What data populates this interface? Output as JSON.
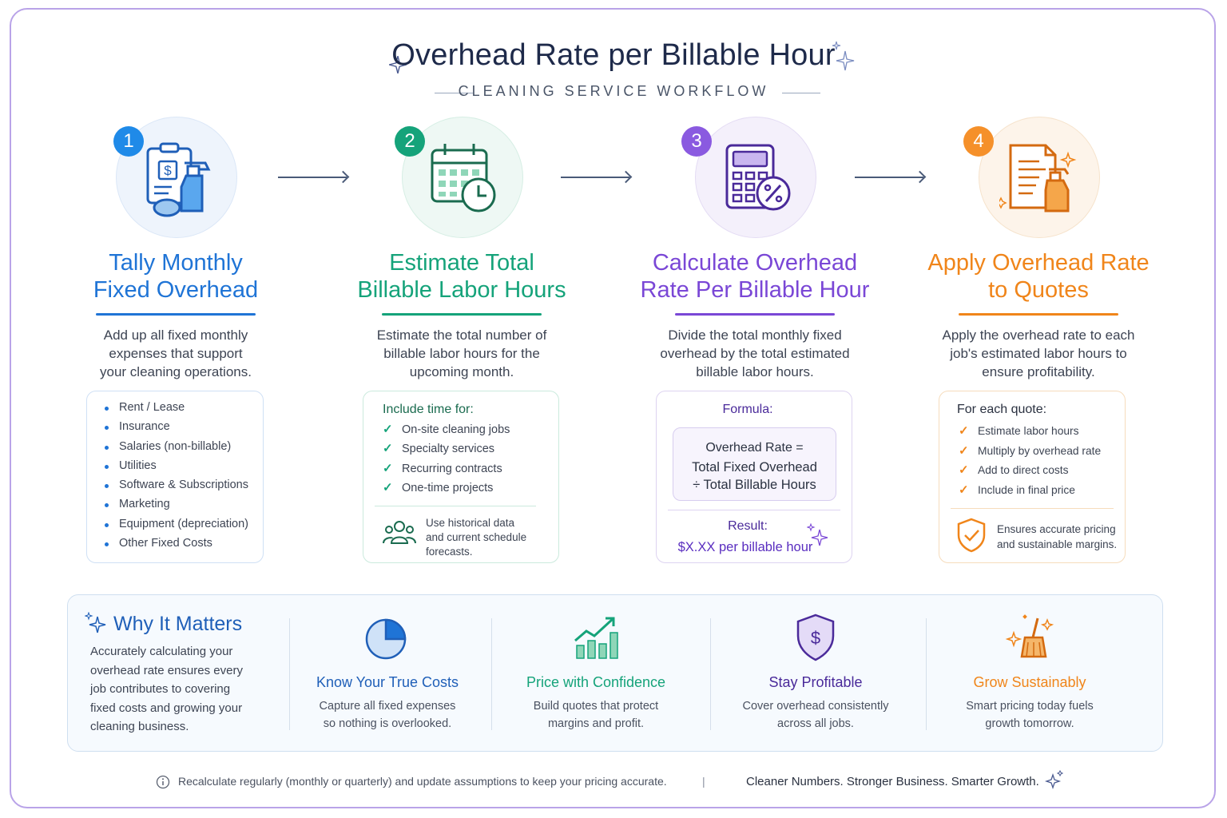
{
  "header": {
    "title": "Overhead Rate per Billable Hour",
    "subtitle": "CLEANING SERVICE WORKFLOW"
  },
  "colors": {
    "step1": "#1f74d6",
    "step2": "#15a37a",
    "step3": "#7a47d6",
    "step4": "#f0851a"
  },
  "steps": [
    {
      "number": "1",
      "icon": "clipboard-spray-icon",
      "title_line1": "Tally Monthly",
      "title_line2": "Fixed Overhead",
      "desc": [
        "Add up all fixed monthly",
        "expenses that support",
        "your cleaning operations."
      ],
      "items": [
        "Rent / Lease",
        "Insurance",
        "Salaries (non-billable)",
        "Utilities",
        "Software & Subscriptions",
        "Marketing",
        "Equipment (depreciation)",
        "Other Fixed Costs"
      ]
    },
    {
      "number": "2",
      "icon": "calendar-clock-icon",
      "title_line1": "Estimate Total",
      "title_line2": "Billable Labor Hours",
      "desc": [
        "Estimate the total number of",
        "billable labor hours for the",
        "upcoming month."
      ],
      "card_heading": "Include time for:",
      "items": [
        "On-site cleaning jobs",
        "Specialty services",
        "Recurring contracts",
        "One-time projects"
      ],
      "note": [
        "Use historical data",
        "and current schedule",
        "forecasts."
      ]
    },
    {
      "number": "3",
      "icon": "calculator-percent-icon",
      "title_line1": "Calculate Overhead",
      "title_line2": "Rate Per Billable Hour",
      "desc": [
        "Divide the total monthly fixed",
        "overhead by the total estimated",
        "billable labor hours."
      ],
      "formula_label": "Formula:",
      "formula_line1": "Overhead Rate =",
      "formula_line2": "Total Fixed Overhead",
      "formula_line3": "÷ Total Billable Hours",
      "result_label": "Result:",
      "result_value": "$X.XX per billable hour"
    },
    {
      "number": "4",
      "icon": "document-spray-icon",
      "title_line1": "Apply Overhead Rate",
      "title_line2": "to Quotes",
      "desc": [
        "Apply the overhead rate to each",
        "job's estimated labor hours to",
        "ensure profitability."
      ],
      "card_heading": "For each quote:",
      "items": [
        "Estimate labor hours",
        "Multiply by overhead rate",
        "Add to direct costs",
        "Include in final price"
      ],
      "note": [
        "Ensures accurate pricing",
        "and sustainable margins."
      ]
    }
  ],
  "why": {
    "title": "Why It Matters",
    "body": [
      "Accurately calculating your",
      "overhead rate ensures every",
      "job contributes to covering",
      "fixed costs and growing your",
      "cleaning business."
    ]
  },
  "benefits": [
    {
      "icon": "pie-chart-icon",
      "title": "Know Your True Costs",
      "desc": [
        "Capture all fixed expenses",
        "so nothing is overlooked."
      ]
    },
    {
      "icon": "growth-chart-icon",
      "title": "Price with Confidence",
      "desc": [
        "Build quotes that protect",
        "margins and profit."
      ]
    },
    {
      "icon": "dollar-shield-icon",
      "title": "Stay Profitable",
      "desc": [
        "Cover overhead consistently",
        "across all jobs."
      ]
    },
    {
      "icon": "broom-sparkle-icon",
      "title": "Grow Sustainably",
      "desc": [
        "Smart pricing today fuels",
        "growth tomorrow."
      ]
    }
  ],
  "footer": {
    "note": "Recalculate regularly (monthly or quarterly) and update assumptions to keep your pricing accurate.",
    "separator": "|",
    "tagline": "Cleaner Numbers. Stronger Business. Smarter Growth."
  }
}
